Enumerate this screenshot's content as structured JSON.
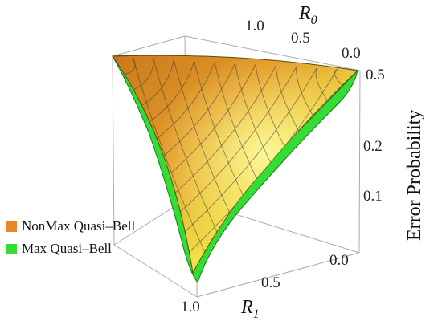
{
  "chart_data": {
    "type": "surface3d",
    "axes": {
      "r0": {
        "title": "R",
        "subscript": "0",
        "ticks": [
          "1.0",
          "0.5",
          "0.0"
        ]
      },
      "r1": {
        "title": "R",
        "subscript": "1",
        "ticks": [
          "1.0",
          "0.5",
          "0.0"
        ]
      },
      "z": {
        "title": "Error Probability",
        "ticks": [
          "0.5",
          "0.2",
          "0.1"
        ],
        "scale": "log"
      }
    },
    "series": [
      {
        "name": "NonMax Quasi–Bell",
        "color": "#e8862a"
      },
      {
        "name": "Max Quasi–Bell",
        "color": "#33dd33"
      }
    ],
    "legend_position": "left",
    "grid": true
  }
}
